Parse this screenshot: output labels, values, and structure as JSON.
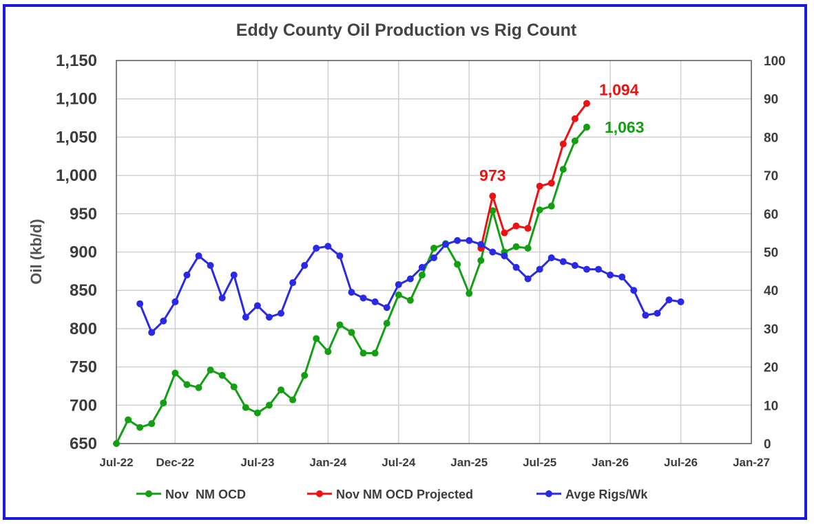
{
  "chart_data": {
    "type": "line",
    "title": "Eddy County Oil Production vs Rig Count",
    "ylabel": "Oil (kb/d)",
    "xlabel": "",
    "ylim": [
      650,
      1150
    ],
    "y_ticks": [
      "650",
      "700",
      "750",
      "800",
      "850",
      "900",
      "950",
      "1,000",
      "1,050",
      "1,100",
      "1,150"
    ],
    "y2lim": [
      0,
      100
    ],
    "y2_ticks": [
      "0",
      "10",
      "20",
      "30",
      "40",
      "50",
      "60",
      "70",
      "80",
      "90",
      "100"
    ],
    "x_ticks": [
      "Jul-22",
      "Dec-22",
      "Jul-23",
      "Jan-24",
      "Jul-24",
      "Jan-25",
      "Jul-25",
      "Jan-26",
      "Jul-26",
      "Jan-27"
    ],
    "x_tick_dates": [
      "2022-07",
      "2022-12",
      "2023-07",
      "2024-01",
      "2024-07",
      "2025-01",
      "2025-07",
      "2026-01",
      "2026-07",
      "2027-01"
    ],
    "grid": true,
    "legend_position": "bottom",
    "series": [
      {
        "name": "Nov  NM OCD",
        "color": "#12a012",
        "axis": "left",
        "x": [
          "2022-07",
          "2022-08",
          "2022-09",
          "2022-10",
          "2022-11",
          "2022-12",
          "2023-01",
          "2023-02",
          "2023-03",
          "2023-04",
          "2023-05",
          "2023-06",
          "2023-07",
          "2023-08",
          "2023-09",
          "2023-10",
          "2023-11",
          "2023-12",
          "2024-01",
          "2024-02",
          "2024-03",
          "2024-04",
          "2024-05",
          "2024-06",
          "2024-07",
          "2024-08",
          "2024-09",
          "2024-10",
          "2024-11",
          "2024-12",
          "2025-01",
          "2025-02",
          "2025-03",
          "2025-04",
          "2025-05",
          "2025-06",
          "2025-07",
          "2025-08",
          "2025-09",
          "2025-10",
          "2025-11"
        ],
        "values": [
          650,
          681,
          671,
          676,
          703,
          742,
          727,
          723,
          746,
          739,
          724,
          697,
          690,
          700,
          720,
          707,
          739,
          787,
          770,
          805,
          795,
          768,
          768,
          807,
          844,
          837,
          870,
          905,
          911,
          884,
          846,
          889,
          954,
          900,
          907,
          905,
          955,
          960,
          1008,
          1045,
          1063
        ]
      },
      {
        "name": "Nov NM OCD Projected",
        "color": "#ee1111",
        "axis": "left",
        "x": [
          "2025-02",
          "2025-03",
          "2025-04",
          "2025-05",
          "2025-06",
          "2025-07",
          "2025-08",
          "2025-09",
          "2025-10",
          "2025-11"
        ],
        "values": [
          905,
          973,
          925,
          934,
          931,
          986,
          990,
          1041,
          1074,
          1094
        ]
      },
      {
        "name": "Avge Rigs/Wk",
        "color": "#2a2ae6",
        "axis": "right",
        "x": [
          "2022-09",
          "2022-10",
          "2022-11",
          "2022-12",
          "2023-01",
          "2023-02",
          "2023-03",
          "2023-04",
          "2023-05",
          "2023-06",
          "2023-07",
          "2023-08",
          "2023-09",
          "2023-10",
          "2023-11",
          "2023-12",
          "2024-01",
          "2024-02",
          "2024-03",
          "2024-04",
          "2024-05",
          "2024-06",
          "2024-07",
          "2024-08",
          "2024-09",
          "2024-10",
          "2024-11",
          "2024-12",
          "2025-01",
          "2025-02",
          "2025-03",
          "2025-04",
          "2025-05",
          "2025-06",
          "2025-07",
          "2025-08",
          "2025-09",
          "2025-10",
          "2025-11",
          "2025-12",
          "2026-01",
          "2026-02",
          "2026-03",
          "2026-04",
          "2026-05",
          "2026-06",
          "2026-07"
        ],
        "values": [
          36.5,
          29,
          32,
          37,
          44,
          49,
          46.5,
          38,
          44,
          33,
          36,
          33,
          34,
          42,
          46.5,
          51,
          51.5,
          49,
          39.5,
          38,
          37,
          35.5,
          41.5,
          43,
          46,
          48.5,
          52,
          53,
          53,
          52,
          50,
          49,
          46,
          43,
          45.5,
          48.5,
          47.5,
          46.5,
          45.5,
          45.5,
          44,
          43.5,
          40,
          33.5,
          34,
          37.5,
          37
        ]
      }
    ],
    "annotations": [
      {
        "text": "973",
        "color": "#ee1111",
        "x": "2025-03",
        "y": 973
      },
      {
        "text": "1,094",
        "color": "#ee1111",
        "x": "2025-11",
        "y": 1094
      },
      {
        "text": "1,063",
        "color": "#12a012",
        "x": "2025-11",
        "y": 1063
      }
    ]
  }
}
